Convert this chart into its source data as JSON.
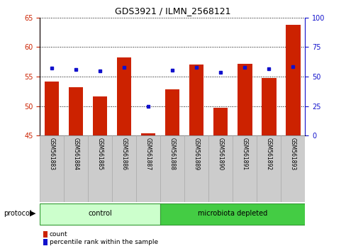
{
  "title": "GDS3921 / ILMN_2568121",
  "samples": [
    "GSM561883",
    "GSM561884",
    "GSM561885",
    "GSM561886",
    "GSM561887",
    "GSM561888",
    "GSM561889",
    "GSM561890",
    "GSM561891",
    "GSM561892",
    "GSM561893"
  ],
  "count_values": [
    54.1,
    53.2,
    51.6,
    58.3,
    45.4,
    52.8,
    57.1,
    49.7,
    57.2,
    54.7,
    63.8
  ],
  "percentile_values": [
    57,
    56,
    55,
    57.5,
    25,
    55.5,
    57.5,
    53.5,
    57.5,
    56.5,
    58.5
  ],
  "ylim_left": [
    45,
    65
  ],
  "ylim_right": [
    0,
    100
  ],
  "yticks_left": [
    45,
    50,
    55,
    60,
    65
  ],
  "yticks_right": [
    0,
    25,
    50,
    75,
    100
  ],
  "bar_color": "#cc2200",
  "dot_color": "#1111cc",
  "bar_bottom": 45,
  "groups": [
    {
      "label": "control",
      "start": 0,
      "end": 5,
      "color": "#ccffcc"
    },
    {
      "label": "microbiota depleted",
      "start": 5,
      "end": 11,
      "color": "#44cc44"
    }
  ],
  "legend_items": [
    {
      "label": "count",
      "color": "#cc2200"
    },
    {
      "label": "percentile rank within the sample",
      "color": "#1111cc"
    }
  ],
  "background_color": "#ffffff",
  "tick_color_left": "#cc2200",
  "tick_color_right": "#1111cc",
  "protocol_label": "protocol",
  "gray_box_color": "#cccccc",
  "gray_box_edge": "#aaaaaa"
}
